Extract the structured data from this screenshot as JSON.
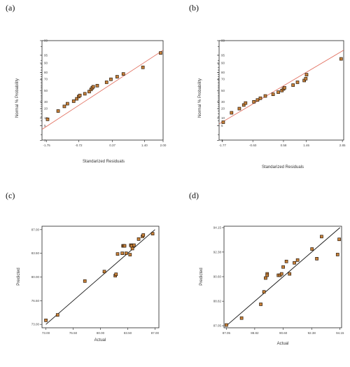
{
  "panels": [
    {
      "label": "(a)"
    },
    {
      "label": "(b)"
    },
    {
      "label": "(c)"
    },
    {
      "label": "(d)"
    }
  ],
  "colors": {
    "point_fill": "#c9823a",
    "normal_line": "#e06655",
    "fit_line": "#111111",
    "frame": "#222222"
  },
  "chart_data": [
    {
      "type": "scatter",
      "title": "",
      "xlabel": "Standarized Residuals",
      "ylabel": "Normal % Probability",
      "xlim": [
        -1.9,
        2.0
      ],
      "ylim": [
        1,
        99
      ],
      "x_ticks": [
        "-1.75",
        "-0.72",
        "0.37",
        "1.40",
        "2.00"
      ],
      "x_tick_values": [
        -1.75,
        -0.72,
        0.37,
        1.4,
        2.0
      ],
      "y_ticks": [
        "1",
        "5",
        "10",
        "20",
        "30",
        "50",
        "70",
        "80",
        "90",
        "95",
        "99"
      ],
      "reference_line": {
        "x": [
          -1.9,
          2.0
        ],
        "y": [
          3.5,
          97
        ]
      },
      "points": {
        "x": [
          -1.72,
          -1.38,
          -1.18,
          -1.08,
          -0.88,
          -0.78,
          -0.72,
          -0.68,
          -0.52,
          -0.38,
          -0.32,
          -0.28,
          -0.25,
          -0.12,
          0.18,
          0.32,
          0.52,
          0.72,
          1.35,
          1.92
        ],
        "y": [
          9,
          17,
          23,
          27,
          31,
          35,
          39,
          41,
          44,
          48,
          52,
          55,
          57,
          59,
          65,
          70,
          74,
          78,
          86,
          96
        ]
      }
    },
    {
      "type": "scatter",
      "title": "",
      "xlabel": "Standarized Residuals",
      "ylabel": "Normal % Probability",
      "xlim": [
        -1.9,
        2.9
      ],
      "ylim": [
        1,
        99
      ],
      "x_ticks": [
        "-1.77",
        "-0.60",
        "0.58",
        "1.46",
        "2.85"
      ],
      "x_tick_values": [
        -1.77,
        -0.6,
        0.58,
        1.46,
        2.85
      ],
      "y_ticks": [
        "1",
        "5",
        "10",
        "20",
        "30",
        "50",
        "70",
        "80",
        "90",
        "95",
        "99"
      ],
      "reference_line": {
        "x": [
          -1.9,
          2.9
        ],
        "y": [
          6,
          97
        ]
      },
      "points": {
        "x": [
          -1.74,
          -1.42,
          -1.12,
          -0.95,
          -0.88,
          -0.56,
          -0.42,
          -0.31,
          -0.12,
          0.18,
          0.38,
          0.52,
          0.58,
          0.62,
          0.95,
          1.12,
          1.38,
          1.44,
          1.47,
          2.8
        ],
        "y": [
          7,
          15,
          20,
          25,
          28,
          30,
          33,
          36,
          40,
          43,
          47,
          50,
          53,
          55,
          60,
          65,
          68,
          71,
          77,
          93
        ]
      }
    },
    {
      "type": "scatter",
      "title": "",
      "xlabel": "Actual",
      "ylabel": "Predicted",
      "xlim": [
        72.5,
        87.5
      ],
      "ylim": [
        72.5,
        87.5
      ],
      "x_ticks": [
        "73.00",
        "76.50",
        "80.00",
        "83.50",
        "87.00"
      ],
      "x_tick_values": [
        73,
        76.5,
        80,
        83.5,
        87
      ],
      "y_ticks": [
        "73.00",
        "76.50",
        "80.00",
        "83.50",
        "87.00"
      ],
      "y_tick_values": [
        73,
        76.5,
        80,
        83.5,
        87
      ],
      "reference_line": {
        "x": [
          73,
          87
        ],
        "y": [
          73,
          87
        ]
      },
      "points": {
        "x": [
          73.0,
          74.5,
          78.0,
          80.5,
          81.9,
          82.0,
          82.2,
          82.8,
          82.9,
          83.0,
          83.1,
          83.3,
          83.8,
          83.9,
          84.0,
          84.1,
          84.3,
          84.9,
          85.4,
          85.5,
          86.7
        ],
        "y": [
          73.6,
          74.4,
          79.4,
          80.8,
          80.2,
          80.4,
          83.4,
          83.5,
          84.6,
          84.6,
          84.6,
          83.5,
          83.3,
          84.7,
          84.6,
          84.2,
          84.7,
          85.6,
          86.0,
          86.2,
          86.4
        ]
      }
    },
    {
      "type": "scatter",
      "title": "",
      "xlabel": "Actual",
      "ylabel": "Predicted",
      "xlim": [
        86.9,
        94.25
      ],
      "ylim": [
        86.9,
        94.25
      ],
      "x_ticks": [
        "87.05",
        "88.82",
        "90.60",
        "92.38",
        "94.15"
      ],
      "x_tick_values": [
        87.05,
        88.82,
        90.6,
        92.38,
        94.15
      ],
      "y_ticks": [
        "87.05",
        "88.82",
        "90.60",
        "92.38",
        "94.15"
      ],
      "y_tick_values": [
        87.05,
        88.82,
        90.6,
        92.38,
        94.15
      ],
      "reference_line": {
        "x": [
          87.05,
          94.15
        ],
        "y": [
          87.05,
          94.15
        ]
      },
      "points": {
        "x": [
          87.05,
          88.0,
          89.2,
          89.4,
          89.5,
          89.6,
          89.6,
          90.3,
          90.4,
          90.5,
          90.6,
          90.8,
          91.0,
          91.3,
          91.5,
          92.4,
          92.7,
          93.0,
          94.0,
          94.1
        ],
        "y": [
          87.1,
          87.6,
          88.6,
          89.5,
          90.5,
          90.8,
          90.7,
          90.7,
          90.7,
          90.8,
          91.3,
          91.7,
          90.8,
          91.6,
          91.8,
          92.6,
          91.9,
          93.5,
          92.2,
          93.3
        ]
      }
    }
  ]
}
